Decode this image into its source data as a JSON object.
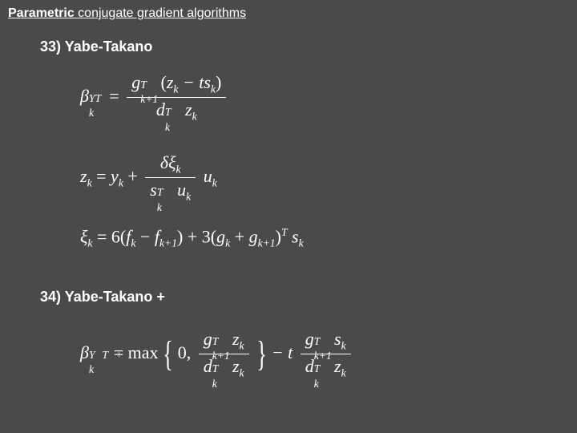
{
  "slide": {
    "background_color": "#4a4a4a",
    "text_color": "#ffffff",
    "title_prefix": "Parametric",
    "title_rest": " conjugate gradient algorithms",
    "title_fontsize": 16,
    "heading_fontsize": 18,
    "formula_fontsize": 22,
    "formula_font": "Times New Roman"
  },
  "items": {
    "h33": "33) Yabe-Takano",
    "h34": "34) Yabe-Takano +"
  },
  "formulas": {
    "f1": {
      "lhs_sym": "β",
      "lhs_sup": "YT",
      "lhs_sub": "k",
      "eq": " = ",
      "num_a": "g",
      "num_a_sup": "T",
      "num_a_sub": "k+1",
      "num_paren_open": "(",
      "num_b": "z",
      "num_b_sub": "k",
      "num_minus": " − t",
      "num_c": "s",
      "num_c_sub": "k",
      "num_paren_close": ")",
      "den_a": "d",
      "den_a_sup": "T",
      "den_a_sub": "k",
      "den_b": "z",
      "den_b_sub": "k"
    },
    "f2": {
      "lhs": "z",
      "lhs_sub": "k",
      "eq": " = ",
      "r1": "y",
      "r1_sub": "k",
      "plus": " + ",
      "num_a": "δξ",
      "num_a_sub": "k",
      "den_a": "s",
      "den_a_sup": "T",
      "den_a_sub": "k",
      "den_b": "u",
      "den_b_sub": "k",
      "tail": "u",
      "tail_sub": "k"
    },
    "f3": {
      "lhs": "ξ",
      "lhs_sub": "k",
      "eq": " = 6(",
      "a": "f",
      "a_sub": "k",
      "minus": " − ",
      "b": "f",
      "b_sub": "k+1",
      "mid": ") + 3(",
      "c": "g",
      "c_sub": "k",
      "plus": " + ",
      "d": "g",
      "d_sub": "k+1",
      "close": ")",
      "sup_T": "T",
      "e": "s",
      "e_sub": "k"
    },
    "f4": {
      "lhs_sym": "β",
      "lhs_sup": "YT+",
      "lhs_sub": "k",
      "eq": " = max",
      "zero": "0,  ",
      "num1_a": "g",
      "num1_a_sup": "T",
      "num1_a_sub": "k+1",
      "num1_b": "z",
      "num1_b_sub": "k",
      "den1_a": "d",
      "den1_a_sup": "T",
      "den1_a_sub": "k",
      "den1_b": "z",
      "den1_b_sub": "k",
      "mid": " − t ",
      "num2_a": "g",
      "num2_a_sup": "T",
      "num2_a_sub": "k+1",
      "num2_b": "s",
      "num2_b_sub": "k",
      "den2_a": "d",
      "den2_a_sup": "T",
      "den2_a_sub": "k",
      "den2_b": "z",
      "den2_b_sub": "k"
    }
  }
}
